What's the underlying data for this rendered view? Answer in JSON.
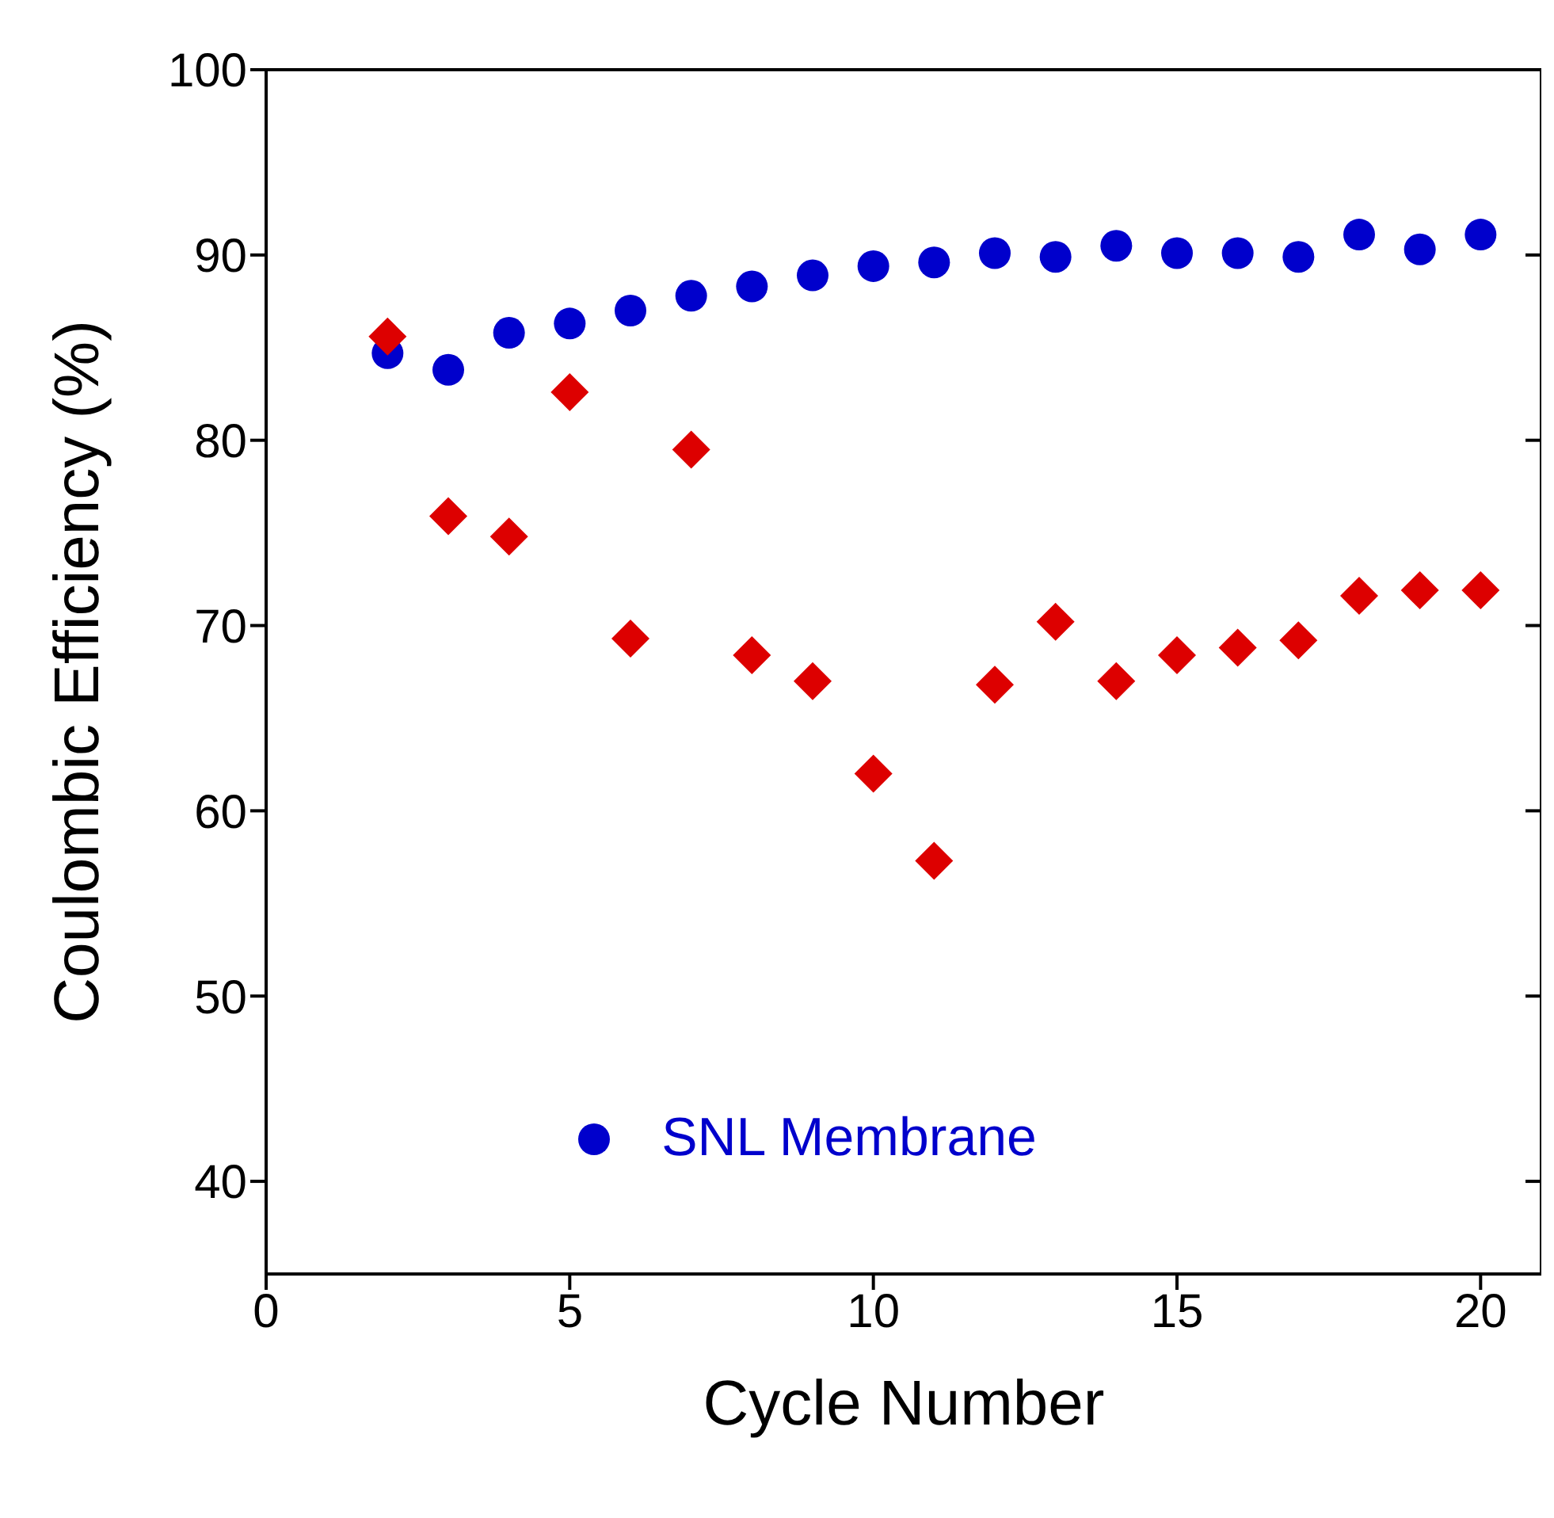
{
  "chart_data": {
    "type": "scatter",
    "xlabel": "Cycle Number",
    "ylabel": "Coulombic Efficiency (%)",
    "xlim": [
      0,
      21
    ],
    "xticks": [
      0,
      5,
      10,
      15,
      20
    ],
    "ylim": [
      35,
      100
    ],
    "yticks": [
      40,
      50,
      60,
      70,
      80,
      90,
      100
    ],
    "legend": "bottom",
    "x": [
      2,
      3,
      4,
      5,
      6,
      7,
      8,
      9,
      10,
      11,
      12,
      13,
      14,
      15,
      16,
      17,
      18,
      19,
      20
    ],
    "series": [
      {
        "name": "SNL Membrane",
        "color": "#0000cc",
        "marker": "circle",
        "values": [
          84.7,
          83.8,
          85.8,
          86.3,
          87.0,
          87.8,
          88.3,
          88.9,
          89.4,
          89.6,
          90.1,
          89.9,
          90.5,
          90.1,
          90.1,
          89.9,
          91.1,
          90.3,
          91.1
        ]
      },
      {
        "color": "#dd0000",
        "marker": "diamond",
        "values": [
          85.6,
          75.9,
          74.8,
          82.6,
          69.3,
          79.5,
          68.4,
          67.0,
          62.0,
          57.3,
          66.8,
          70.2,
          67.0,
          68.4,
          68.8,
          69.2,
          71.6,
          71.9,
          71.9
        ]
      }
    ]
  }
}
